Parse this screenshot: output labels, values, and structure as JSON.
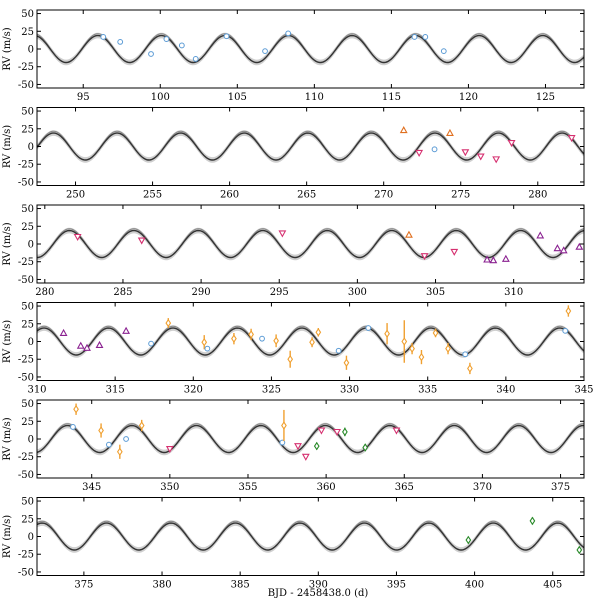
{
  "chart_data": {
    "type": "line",
    "xlabel": "BJD - 2458438.0 (d)",
    "ylabel": "RV (m/s)",
    "ylim": [
      -55,
      55
    ],
    "yticks": [
      -50,
      -25,
      0,
      25,
      50
    ],
    "model": {
      "period_days": 4.125,
      "phase_day": 95.95,
      "amplitude_ms": 19,
      "band_halfwidth_ms": 4,
      "colors": {
        "curve": "#333333",
        "band": "#cfcfcf"
      }
    },
    "instrument_colors": {
      "circle": "#5b9bd5",
      "triangle_up": "#e07020",
      "triangle_down": "#d63070",
      "triangle_up_purple": "#8a2090",
      "diamond_orange": "#f0a030",
      "diamond_green": "#2a8a2a"
    },
    "panels": [
      {
        "xlim": [
          92,
          127.5
        ],
        "xticks": [
          95,
          100,
          105,
          110,
          115,
          120,
          125
        ],
        "points": [
          {
            "x": 96.3,
            "y": 17,
            "m": "circle"
          },
          {
            "x": 97.4,
            "y": 10,
            "m": "circle"
          },
          {
            "x": 99.4,
            "y": -7,
            "m": "circle"
          },
          {
            "x": 100.4,
            "y": 14,
            "m": "circle"
          },
          {
            "x": 101.4,
            "y": 5,
            "m": "circle"
          },
          {
            "x": 102.3,
            "y": -14,
            "m": "circle"
          },
          {
            "x": 104.3,
            "y": 18,
            "m": "circle"
          },
          {
            "x": 106.8,
            "y": -3,
            "m": "circle"
          },
          {
            "x": 108.3,
            "y": 22,
            "m": "circle"
          },
          {
            "x": 116.5,
            "y": 17,
            "m": "circle"
          },
          {
            "x": 117.2,
            "y": 17,
            "m": "circle"
          },
          {
            "x": 118.4,
            "y": -3,
            "m": "circle"
          }
        ]
      },
      {
        "xlim": [
          247.5,
          283
        ],
        "xticks": [
          250,
          255,
          260,
          265,
          270,
          275,
          280
        ],
        "points": [
          {
            "x": 271.3,
            "y": 23,
            "m": "triangle_up"
          },
          {
            "x": 272.3,
            "y": -9,
            "m": "triangle_down"
          },
          {
            "x": 273.3,
            "y": -4,
            "m": "circle"
          },
          {
            "x": 274.3,
            "y": 19,
            "m": "triangle_up"
          },
          {
            "x": 275.3,
            "y": -8,
            "m": "triangle_down"
          },
          {
            "x": 276.3,
            "y": -14,
            "m": "triangle_down"
          },
          {
            "x": 277.3,
            "y": -18,
            "m": "triangle_down"
          },
          {
            "x": 278.3,
            "y": 5,
            "m": "triangle_down"
          },
          {
            "x": 282.2,
            "y": 12,
            "m": "triangle_down"
          }
        ]
      },
      {
        "xlim": [
          279.5,
          314.5
        ],
        "xticks": [
          280,
          285,
          290,
          295,
          300,
          305,
          310
        ],
        "points": [
          {
            "x": 282.1,
            "y": 10,
            "m": "triangle_down"
          },
          {
            "x": 286.2,
            "y": 5,
            "m": "triangle_down"
          },
          {
            "x": 295.2,
            "y": 15,
            "m": "triangle_down"
          },
          {
            "x": 303.3,
            "y": 13,
            "m": "triangle_up"
          },
          {
            "x": 304.3,
            "y": -17,
            "m": "triangle_down"
          },
          {
            "x": 306.2,
            "y": -11,
            "m": "triangle_down"
          },
          {
            "x": 308.3,
            "y": -22,
            "m": "triangle_up_purple"
          },
          {
            "x": 308.7,
            "y": -23,
            "m": "triangle_up_purple"
          },
          {
            "x": 309.5,
            "y": -21,
            "m": "triangle_up_purple"
          },
          {
            "x": 311.7,
            "y": 12,
            "m": "triangle_up_purple"
          },
          {
            "x": 312.8,
            "y": -6,
            "m": "triangle_up_purple"
          },
          {
            "x": 313.2,
            "y": -9,
            "m": "triangle_up_purple"
          },
          {
            "x": 314.2,
            "y": -4,
            "m": "triangle_up_purple"
          }
        ]
      },
      {
        "xlim": [
          310,
          345
        ],
        "xticks": [
          310,
          315,
          320,
          325,
          330,
          335,
          340,
          345
        ],
        "points": [
          {
            "x": 311.7,
            "y": 12,
            "m": "triangle_up_purple"
          },
          {
            "x": 312.8,
            "y": -6,
            "m": "triangle_up_purple"
          },
          {
            "x": 313.2,
            "y": -9,
            "m": "triangle_up_purple"
          },
          {
            "x": 314.0,
            "y": -5,
            "m": "triangle_up_purple"
          },
          {
            "x": 315.7,
            "y": 15,
            "m": "triangle_up_purple"
          },
          {
            "x": 317.3,
            "y": -3,
            "m": "circle"
          },
          {
            "x": 318.4,
            "y": 26,
            "m": "diamond_orange",
            "e": 7
          },
          {
            "x": 320.7,
            "y": -1,
            "m": "diamond_orange",
            "e": 10
          },
          {
            "x": 320.9,
            "y": -10,
            "m": "circle"
          },
          {
            "x": 322.6,
            "y": 4,
            "m": "diamond_orange",
            "e": 8
          },
          {
            "x": 323.7,
            "y": 10,
            "m": "diamond_orange",
            "e": 8
          },
          {
            "x": 324.4,
            "y": 4,
            "m": "circle"
          },
          {
            "x": 325.3,
            "y": 1,
            "m": "diamond_orange",
            "e": 9
          },
          {
            "x": 326.2,
            "y": -25,
            "m": "diamond_orange",
            "e": 12
          },
          {
            "x": 327.6,
            "y": -1,
            "m": "diamond_orange",
            "e": 7
          },
          {
            "x": 328.0,
            "y": 13,
            "m": "diamond_orange",
            "e": 6
          },
          {
            "x": 329.3,
            "y": -13,
            "m": "circle"
          },
          {
            "x": 329.8,
            "y": -30,
            "m": "diamond_orange",
            "e": 10
          },
          {
            "x": 331.2,
            "y": 19,
            "m": "circle"
          },
          {
            "x": 332.4,
            "y": 11,
            "m": "diamond_orange",
            "e": 15
          },
          {
            "x": 333.5,
            "y": 0,
            "m": "diamond_orange",
            "e": 30
          },
          {
            "x": 334.0,
            "y": -10,
            "m": "diamond_orange",
            "e": 8
          },
          {
            "x": 334.6,
            "y": -22,
            "m": "diamond_orange",
            "e": 10
          },
          {
            "x": 335.5,
            "y": 12,
            "m": "diamond_orange",
            "e": 6
          },
          {
            "x": 336.3,
            "y": -10,
            "m": "diamond_orange",
            "e": 8
          },
          {
            "x": 337.4,
            "y": -18,
            "m": "circle"
          },
          {
            "x": 337.7,
            "y": -38,
            "m": "diamond_orange",
            "e": 8
          },
          {
            "x": 343.8,
            "y": 15,
            "m": "circle"
          },
          {
            "x": 344.0,
            "y": 43,
            "m": "diamond_orange",
            "e": 8
          }
        ]
      },
      {
        "xlim": [
          341.5,
          376.5
        ],
        "xticks": [
          345,
          350,
          355,
          360,
          365,
          370,
          375
        ],
        "points": [
          {
            "x": 343.8,
            "y": 17,
            "m": "circle"
          },
          {
            "x": 344.0,
            "y": 42,
            "m": "diamond_orange",
            "e": 8
          },
          {
            "x": 345.6,
            "y": 12,
            "m": "diamond_orange",
            "e": 10
          },
          {
            "x": 346.1,
            "y": -8,
            "m": "circle"
          },
          {
            "x": 346.8,
            "y": -18,
            "m": "diamond_orange",
            "e": 10
          },
          {
            "x": 347.2,
            "y": 0,
            "m": "circle"
          },
          {
            "x": 348.2,
            "y": 19,
            "m": "diamond_orange",
            "e": 8
          },
          {
            "x": 350.0,
            "y": -14,
            "m": "triangle_down"
          },
          {
            "x": 357.2,
            "y": -5,
            "m": "circle"
          },
          {
            "x": 357.3,
            "y": 19,
            "m": "diamond_orange",
            "e": 22
          },
          {
            "x": 358.2,
            "y": -10,
            "m": "triangle_down"
          },
          {
            "x": 358.7,
            "y": -25,
            "m": "triangle_down"
          },
          {
            "x": 359.4,
            "y": -10,
            "m": "diamond_green",
            "e": 5
          },
          {
            "x": 359.7,
            "y": 12,
            "m": "triangle_down"
          },
          {
            "x": 360.7,
            "y": 10,
            "m": "triangle_down"
          },
          {
            "x": 361.2,
            "y": 10,
            "m": "diamond_green",
            "e": 6
          },
          {
            "x": 362.5,
            "y": -12,
            "m": "diamond_green",
            "e": 5
          },
          {
            "x": 364.5,
            "y": 12,
            "m": "triangle_down"
          }
        ]
      },
      {
        "xlim": [
          372,
          407
        ],
        "xticks": [
          375,
          380,
          385,
          390,
          395,
          400,
          405
        ],
        "points": [
          {
            "x": 399.6,
            "y": -5,
            "m": "diamond_green",
            "e": 5
          },
          {
            "x": 403.7,
            "y": 22,
            "m": "diamond_green",
            "e": 5
          },
          {
            "x": 406.7,
            "y": -19,
            "m": "diamond_green",
            "e": 4
          }
        ]
      }
    ]
  }
}
